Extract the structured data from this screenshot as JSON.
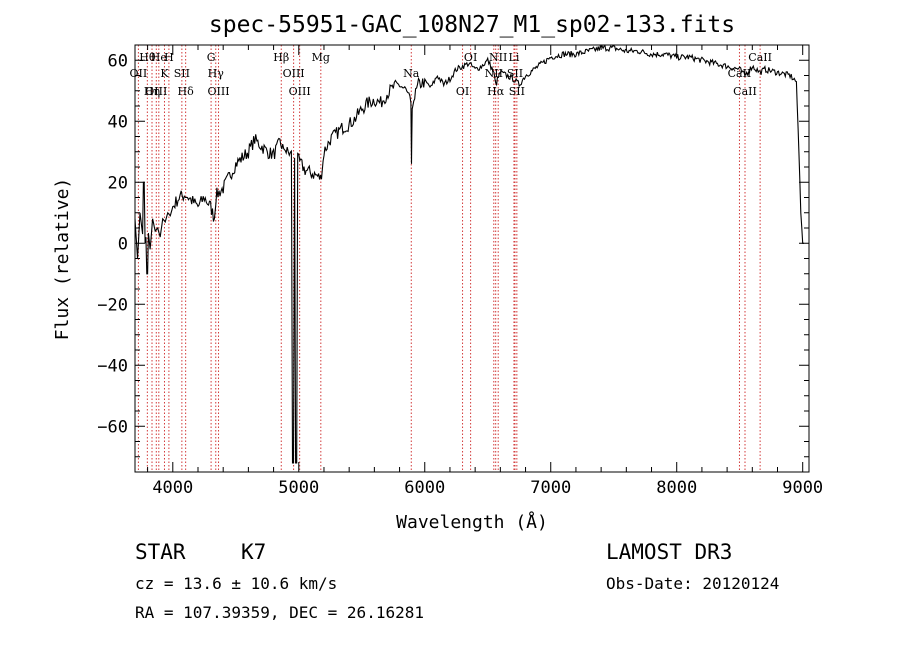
{
  "chart_data": {
    "type": "line",
    "title": "spec-55951-GAC_108N27_M1_sp02-133.fits",
    "xlabel": "Wavelength (Å)",
    "ylabel": "Flux (relative)",
    "xlim": [
      3700,
      9050
    ],
    "ylim": [
      -75,
      65
    ],
    "xticks": [
      4000,
      5000,
      6000,
      7000,
      8000,
      9000
    ],
    "yticks": [
      -60,
      -40,
      -20,
      0,
      20,
      40,
      60
    ],
    "tick_labels_x": [
      "4000",
      "5000",
      "6000",
      "7000",
      "8000",
      "9000"
    ],
    "tick_labels_y": [
      "−60",
      "−40",
      "−20",
      "0",
      "20",
      "40",
      "60"
    ],
    "series": [
      {
        "name": "flux",
        "color": "#000000",
        "x": [
          3700,
          3720,
          3740,
          3760,
          3780,
          3800,
          3820,
          3840,
          3860,
          3880,
          3900,
          3920,
          3940,
          3960,
          3980,
          4000,
          4050,
          4100,
          4150,
          4200,
          4250,
          4300,
          4330,
          4350,
          4400,
          4450,
          4500,
          4550,
          4600,
          4650,
          4700,
          4750,
          4800,
          4850,
          4880,
          4900,
          4950,
          5000,
          5050,
          5100,
          5150,
          5180,
          5200,
          5250,
          5300,
          5350,
          5400,
          5450,
          5500,
          5550,
          5600,
          5650,
          5700,
          5750,
          5800,
          5850,
          5890,
          5895,
          5900,
          5920,
          5950,
          6000,
          6050,
          6100,
          6150,
          6200,
          6250,
          6300,
          6350,
          6400,
          6450,
          6500,
          6550,
          6563,
          6600,
          6650,
          6700,
          6750,
          6800,
          6900,
          7000,
          7100,
          7200,
          7300,
          7400,
          7500,
          7600,
          7700,
          7800,
          7900,
          8000,
          8100,
          8200,
          8300,
          8400,
          8500,
          8540,
          8600,
          8662,
          8700,
          8800,
          8900,
          8950,
          8970,
          8985,
          9000,
          9010
        ],
        "y": [
          8,
          -5,
          10,
          3,
          0,
          6,
          -2,
          8,
          4,
          5,
          2,
          8,
          7,
          10,
          9,
          12,
          15,
          16,
          14,
          12,
          15,
          12,
          8,
          16,
          18,
          22,
          26,
          28,
          30,
          34,
          32,
          30,
          29,
          33,
          31,
          30,
          29,
          27,
          24,
          23,
          22,
          21,
          30,
          34,
          36,
          38,
          39,
          41,
          44,
          46,
          47,
          46,
          49,
          51,
          52,
          50,
          46,
          26,
          44,
          48,
          52,
          53,
          51,
          55,
          52,
          54,
          57,
          58,
          59,
          57,
          58,
          60,
          56,
          52,
          56,
          55,
          54,
          52,
          55,
          58,
          61,
          62,
          62,
          63,
          64,
          64,
          63,
          63,
          62,
          62,
          61,
          61,
          60,
          59,
          58,
          57,
          55,
          58,
          56,
          57,
          56,
          55,
          53,
          30,
          10,
          0,
          0
        ]
      }
    ],
    "line_marks": [
      {
        "name": "Hθ",
        "wavelength": 3798
      },
      {
        "name": "OII",
        "wavelength": 3727
      },
      {
        "name": "OIII",
        "wavelength": 3869
      },
      {
        "name": "He",
        "wavelength": 3889
      },
      {
        "name": "K",
        "wavelength": 3934
      },
      {
        "name": "Hη",
        "wavelength": 3835
      },
      {
        "name": "H",
        "wavelength": 3969
      },
      {
        "name": "SII",
        "wavelength": 4072
      },
      {
        "name": "Hδ",
        "wavelength": 4102
      },
      {
        "name": "G",
        "wavelength": 4304
      },
      {
        "name": "Hγ",
        "wavelength": 4341
      },
      {
        "name": "OIII",
        "wavelength": 4363
      },
      {
        "name": "Hβ",
        "wavelength": 4861
      },
      {
        "name": "OIII",
        "wavelength": 4959
      },
      {
        "name": "OIII",
        "wavelength": 5007
      },
      {
        "name": "Mg",
        "wavelength": 5175
      },
      {
        "name": "Na",
        "wavelength": 5893
      },
      {
        "name": "OI",
        "wavelength": 6300
      },
      {
        "name": "OI",
        "wavelength": 6364
      },
      {
        "name": "NII",
        "wavelength": 6548
      },
      {
        "name": "Hα",
        "wavelength": 6563
      },
      {
        "name": "NII",
        "wavelength": 6583
      },
      {
        "name": "SII",
        "wavelength": 6716
      },
      {
        "name": "SII",
        "wavelength": 6731
      },
      {
        "name": "Li",
        "wavelength": 6708
      },
      {
        "name": "CaII",
        "wavelength": 8498
      },
      {
        "name": "CaII",
        "wavelength": 8542
      },
      {
        "name": "CaII",
        "wavelength": 8662
      }
    ],
    "line_color": "#d23a3a",
    "axis_color": "#000000"
  },
  "info": {
    "class": "STAR",
    "subclass": "K7",
    "survey": "LAMOST DR3",
    "redshift": "cz = 13.6 ± 10.6 km/s",
    "obs_date": "Obs-Date: 20120124",
    "coords": "RA = 107.39359, DEC =  26.16281"
  }
}
